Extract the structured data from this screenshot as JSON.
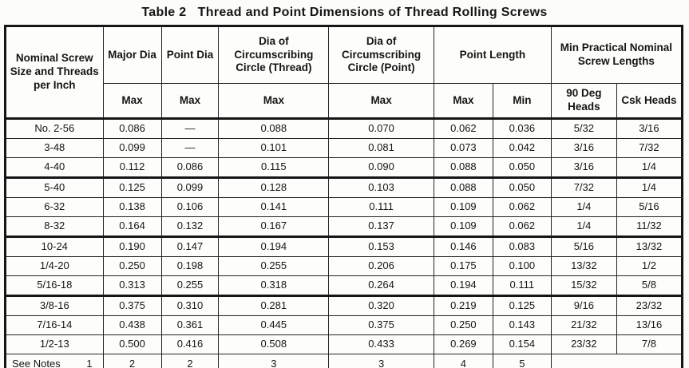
{
  "title": "Table 2   Thread and Point Dimensions of Thread Rolling Screws",
  "table": {
    "header": {
      "col_screw": "Nominal Screw Size and Threads per Inch",
      "col_major_dia": "Major Dia",
      "col_point_dia": "Point Dia",
      "col_circ_thread": "Dia of Circumscribing Circle (Thread)",
      "col_circ_point": "Dia of Circumscribing Circle (Point)",
      "col_point_length": "Point Length",
      "col_min_practical": "Min Practical Nominal Screw Lengths",
      "sub_max": "Max",
      "sub_min": "Min",
      "sub_90deg": "90 Deg Heads",
      "sub_csk": "Csk Heads"
    },
    "groups": [
      [
        [
          "No. 2-56",
          "0.086",
          "—",
          "0.088",
          "0.070",
          "0.062",
          "0.036",
          "5/32",
          "3/16"
        ],
        [
          "3-48",
          "0.099",
          "—",
          "0.101",
          "0.081",
          "0.073",
          "0.042",
          "3/16",
          "7/32"
        ],
        [
          "4-40",
          "0.112",
          "0.086",
          "0.115",
          "0.090",
          "0.088",
          "0.050",
          "3/16",
          "1/4"
        ]
      ],
      [
        [
          "5-40",
          "0.125",
          "0.099",
          "0.128",
          "0.103",
          "0.088",
          "0.050",
          "7/32",
          "1/4"
        ],
        [
          "6-32",
          "0.138",
          "0.106",
          "0.141",
          "0.111",
          "0.109",
          "0.062",
          "1/4",
          "5/16"
        ],
        [
          "8-32",
          "0.164",
          "0.132",
          "0.167",
          "0.137",
          "0.109",
          "0.062",
          "1/4",
          "11/32"
        ]
      ],
      [
        [
          "10-24",
          "0.190",
          "0.147",
          "0.194",
          "0.153",
          "0.146",
          "0.083",
          "5/16",
          "13/32"
        ],
        [
          "1/4-20",
          "0.250",
          "0.198",
          "0.255",
          "0.206",
          "0.175",
          "0.100",
          "13/32",
          "1/2"
        ],
        [
          "5/16-18",
          "0.313",
          "0.255",
          "0.318",
          "0.264",
          "0.194",
          "0.111",
          "15/32",
          "5/8"
        ]
      ],
      [
        [
          "3/8-16",
          "0.375",
          "0.310",
          "0.281",
          "0.320",
          "0.219",
          "0.125",
          "9/16",
          "23/32"
        ],
        [
          "7/16-14",
          "0.438",
          "0.361",
          "0.445",
          "0.375",
          "0.250",
          "0.143",
          "21/32",
          "13/16"
        ],
        [
          "1/2-13",
          "0.500",
          "0.416",
          "0.508",
          "0.433",
          "0.269",
          "0.154",
          "23/32",
          "7/8"
        ]
      ]
    ],
    "footer": {
      "label": "See Notes",
      "refs": [
        "1",
        "2",
        "2",
        "3",
        "3",
        "4",
        "5"
      ]
    }
  }
}
